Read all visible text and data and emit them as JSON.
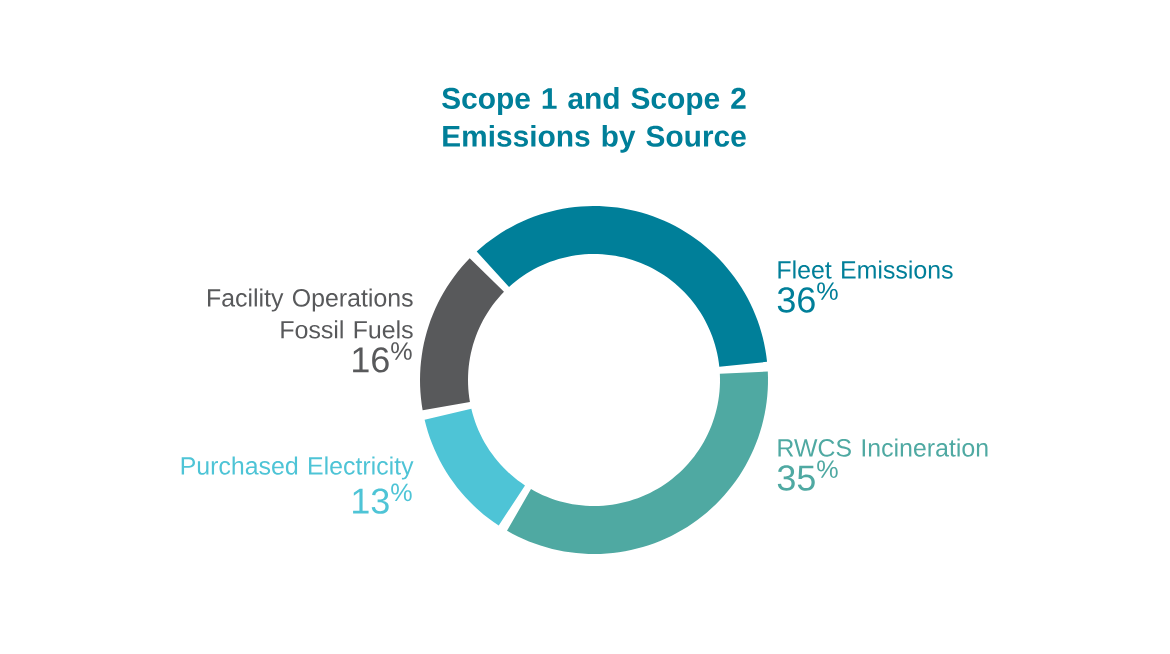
{
  "chart_data": {
    "type": "donut",
    "title": "Scope 1 and Scope 2 Emissions by Source",
    "categories": [
      "Fleet Emissions",
      "RWCS Incineration",
      "Purchased Electricity",
      "Facility Operations Fossil Fuels"
    ],
    "values": [
      36,
      35,
      13,
      16
    ],
    "value_labels": [
      "36$^{%}$",
      "35$^{%}$",
      "13$^{%}$",
      "16$^{%}$"
    ],
    "colors": [
      "#007f99",
      "#4fa9a2",
      "#4ec4d6",
      "#58595b"
    ]
  }
}
